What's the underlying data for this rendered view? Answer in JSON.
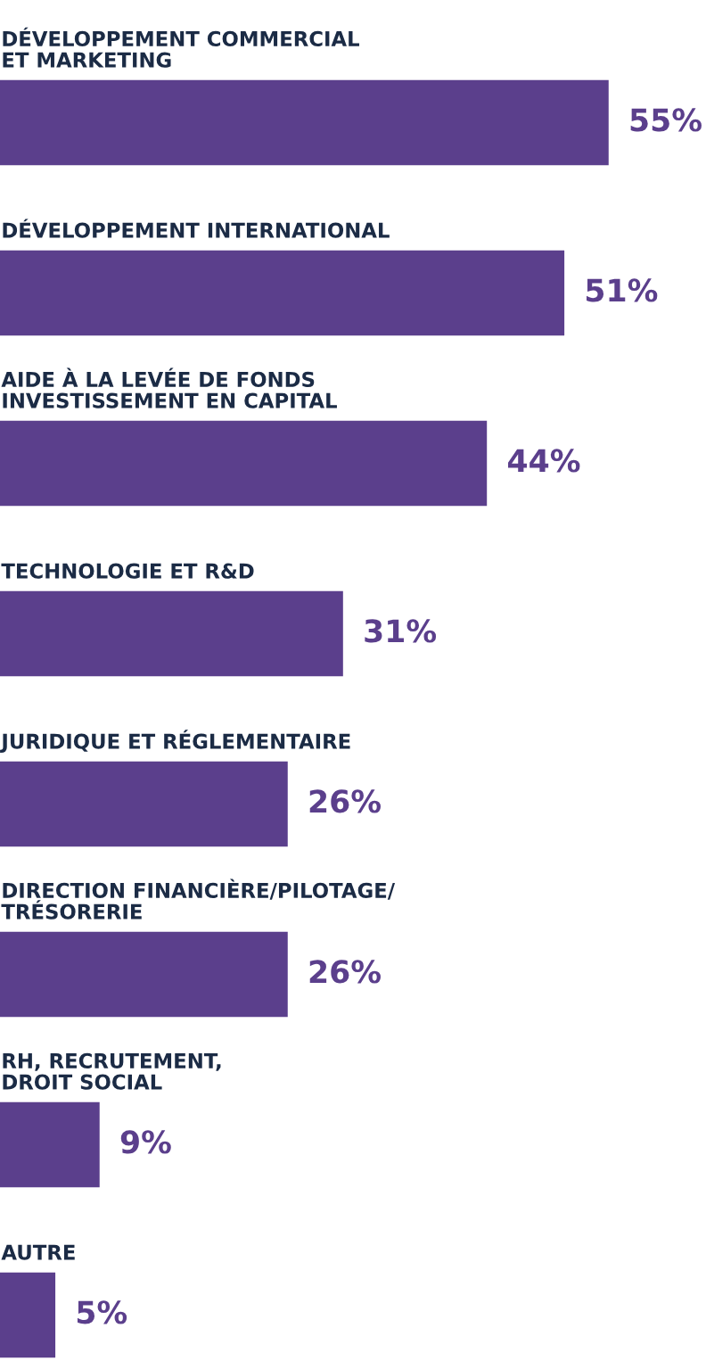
{
  "chart_data": {
    "type": "bar",
    "orientation": "horizontal",
    "color": "#5b3f8c",
    "categories": [
      "DÉVELOPPEMENT COMMERCIAL\nET MARKETING",
      "DÉVELOPPEMENT INTERNATIONAL",
      "AIDE À LA LEVÉE DE FONDS\nINVESTISSEMENT EN CAPITAL",
      "TECHNOLOGIE ET R&D",
      "JURIDIQUE ET RÉGLEMENTAIRE",
      "DIRECTION FINANCIÈRE/PILOTAGE/\nTRÉSORERIE",
      "RH, RECRUTEMENT,\nDROIT SOCIAL",
      "AUTRE"
    ],
    "values": [
      55,
      51,
      44,
      31,
      26,
      26,
      9,
      5
    ],
    "value_labels": [
      "55%",
      "51%",
      "44%",
      "31%",
      "26%",
      "26%",
      "9%",
      "5%"
    ],
    "legend": false
  }
}
